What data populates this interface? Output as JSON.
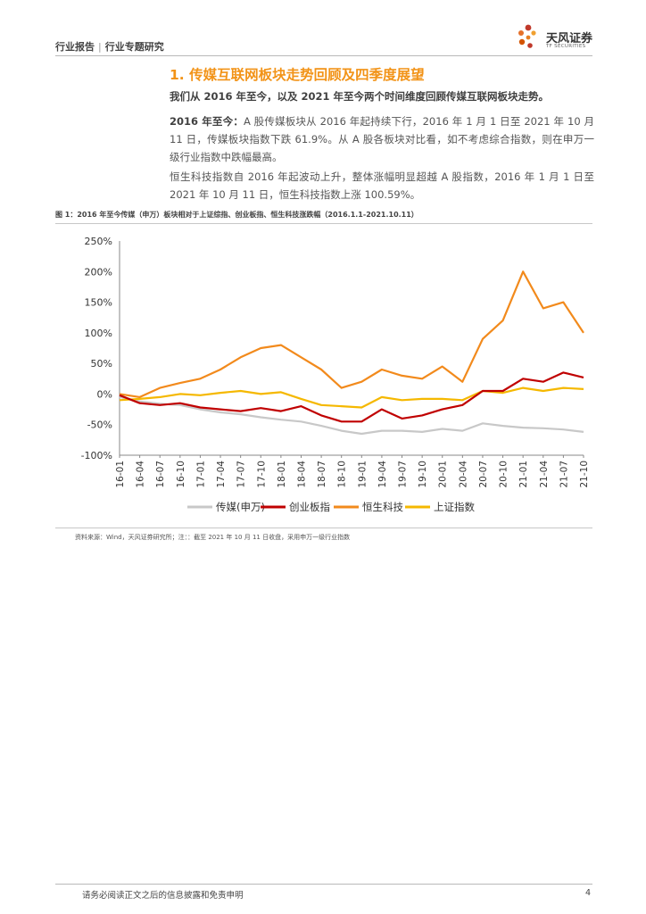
{
  "header": {
    "breadcrumb_1": "行业报告",
    "breadcrumb_sep": "|",
    "breadcrumb_2": "行业专题研究",
    "logo_name": "天风证券",
    "logo_sub": "TF SECURITIES"
  },
  "section": {
    "title": "1. 传媒互联网板块走势回顾及四季度展望",
    "lead": "我们从 2016 年至今，以及 2021 年至今两个时间维度回顾传媒互联网板块走势。",
    "p1_bold": "2016 年至今：",
    "p1_text": "A 股传媒板块从 2016 年起持续下行，2016 年 1 月 1 日至 2021 年 10 月 11 日，传媒板块指数下跌 61.9%。从 A 股各板块对比看，如不考虑综合指数，则在申万一级行业指数中跌幅最高。",
    "p2": "恒生科技指数自 2016 年起波动上升，整体涨幅明显超越 A 股指数，2016 年 1 月 1 日至 2021 年 10 月 11 日，恒生科技指数上涨 100.59%。"
  },
  "figure": {
    "caption": "图 1：2016 年至今传媒（申万）板块相对于上证综指、创业板指、恒生科技涨跌幅（2016.1.1-2021.10.11）",
    "source": "资料来源：Wind，天风证券研究所；注：：截至 2021 年 10 月 11 日收盘，采用申万一级行业指数"
  },
  "chart_data": {
    "type": "line",
    "ylim": [
      -100,
      250
    ],
    "yticks": [
      "250%",
      "200%",
      "150%",
      "100%",
      "50%",
      "0%",
      "-50%",
      "-100%"
    ],
    "ytick_values": [
      250,
      200,
      150,
      100,
      50,
      0,
      -50,
      -100
    ],
    "categories": [
      "16-01",
      "16-04",
      "16-07",
      "16-10",
      "17-01",
      "17-04",
      "17-07",
      "17-10",
      "18-01",
      "18-04",
      "18-07",
      "18-10",
      "19-01",
      "19-04",
      "19-07",
      "19-10",
      "20-01",
      "20-04",
      "20-07",
      "20-10",
      "21-01",
      "21-04",
      "21-07",
      "21-10"
    ],
    "legend_position": "bottom",
    "series": [
      {
        "name": "传媒(申万)",
        "color": "#c8c8c8",
        "values": [
          -5,
          -12,
          -16,
          -18,
          -25,
          -30,
          -33,
          -38,
          -42,
          -45,
          -52,
          -60,
          -65,
          -60,
          -60,
          -62,
          -57,
          -60,
          -48,
          -52,
          -55,
          -56,
          -58,
          -62
        ]
      },
      {
        "name": "创业板指",
        "color": "#c00000",
        "values": [
          -2,
          -15,
          -18,
          -15,
          -22,
          -25,
          -28,
          -23,
          -28,
          -20,
          -35,
          -45,
          -45,
          -25,
          -40,
          -35,
          -25,
          -18,
          5,
          5,
          25,
          20,
          35,
          27
        ]
      },
      {
        "name": "恒生科技",
        "color": "#f28a1c",
        "values": [
          0,
          -5,
          10,
          18,
          25,
          40,
          60,
          75,
          80,
          60,
          40,
          10,
          20,
          40,
          30,
          25,
          45,
          20,
          90,
          120,
          200,
          140,
          150,
          100
        ]
      },
      {
        "name": "上证指数",
        "color": "#f5b800",
        "values": [
          -10,
          -8,
          -5,
          0,
          -2,
          2,
          5,
          0,
          3,
          -8,
          -18,
          -20,
          -22,
          -5,
          -10,
          -8,
          -8,
          -10,
          5,
          2,
          10,
          5,
          10,
          8
        ]
      }
    ]
  },
  "footer": {
    "disclaimer": "请务必阅读正文之后的信息披露和免责申明",
    "page": "4"
  }
}
